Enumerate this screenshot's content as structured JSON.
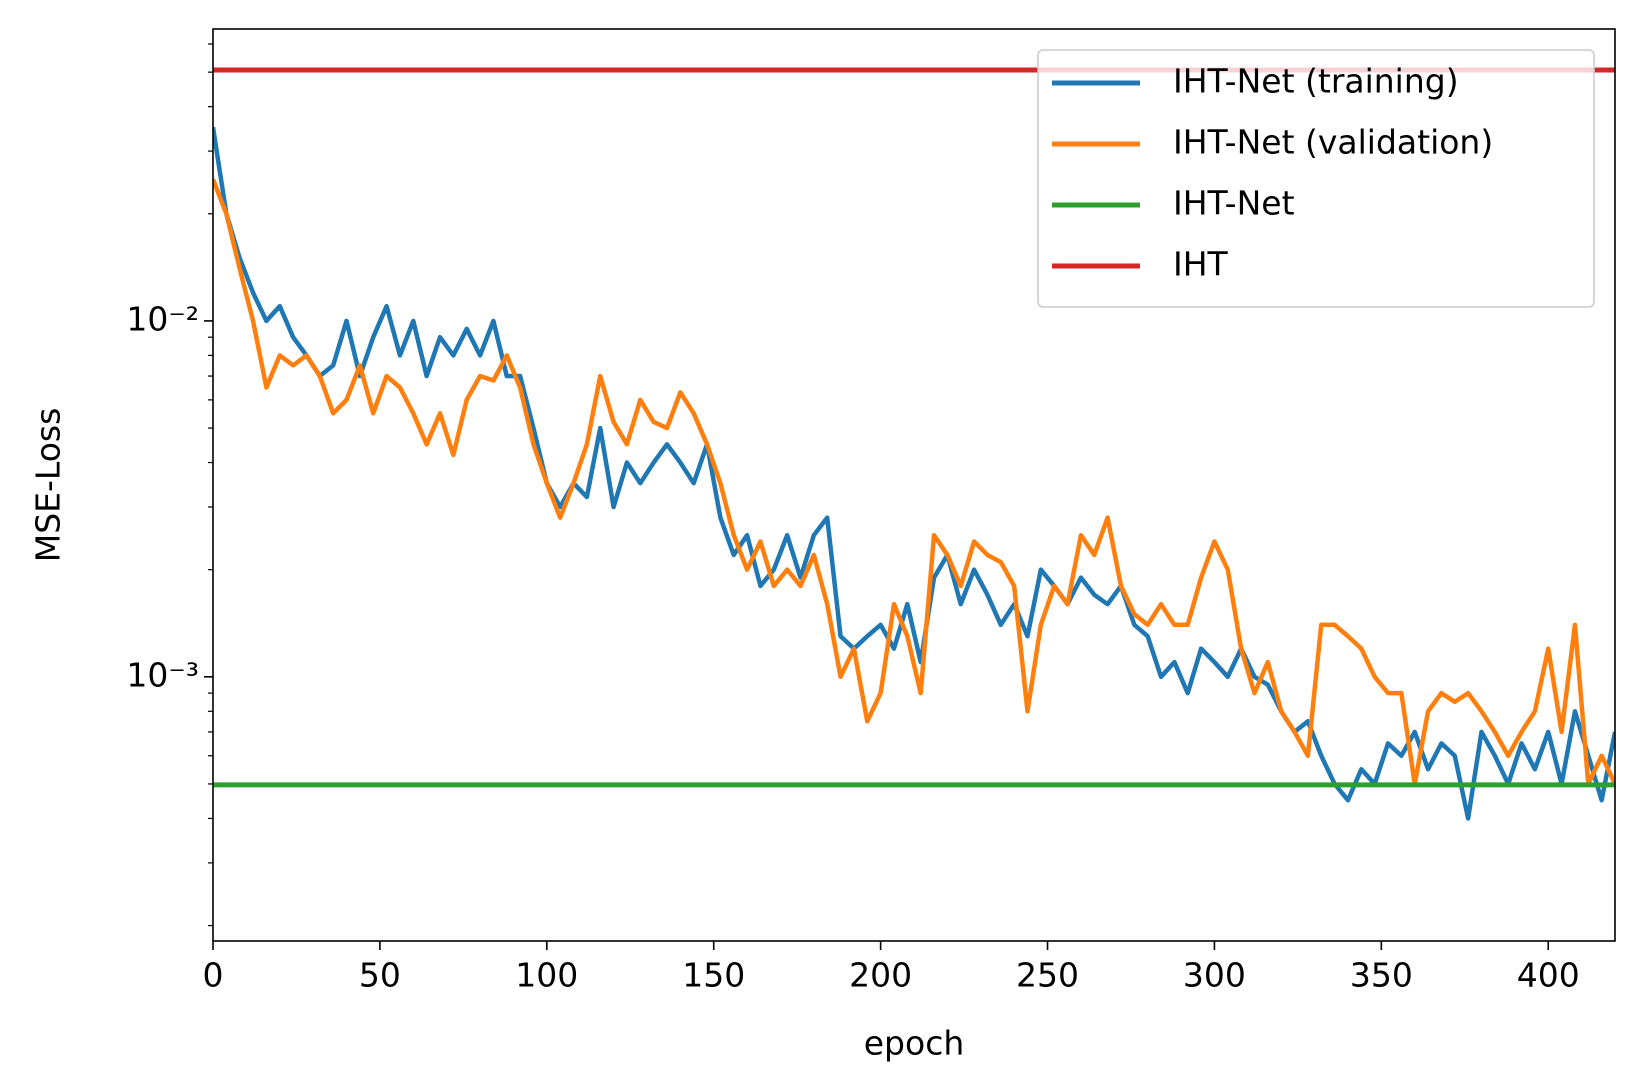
{
  "chart_data": {
    "type": "line",
    "xlabel": "epoch",
    "ylabel": "MSE-Loss",
    "yscale": "log",
    "legend": "upper right",
    "xlim": [
      0,
      420
    ],
    "xticks": [
      0,
      50,
      100,
      150,
      200,
      250,
      300,
      350,
      400
    ],
    "ylim": [
      0.000181,
      0.0661
    ],
    "yticks": [
      {
        "value": 0.001,
        "label": "10⁻³"
      },
      {
        "value": 0.01,
        "label": "10⁻²"
      }
    ],
    "yminor_ticks": [
      0.0002,
      0.0003,
      0.0004,
      0.0005,
      0.0006,
      0.0007,
      0.0008,
      0.0009,
      0.002,
      0.003,
      0.004,
      0.005,
      0.006,
      0.007,
      0.008,
      0.009,
      0.02,
      0.03,
      0.04,
      0.05,
      0.06
    ],
    "x": [
      0,
      4,
      8,
      12,
      16,
      20,
      24,
      28,
      32,
      36,
      40,
      44,
      48,
      52,
      56,
      60,
      64,
      68,
      72,
      76,
      80,
      84,
      88,
      92,
      96,
      100,
      104,
      108,
      112,
      116,
      120,
      124,
      128,
      132,
      136,
      140,
      144,
      148,
      152,
      156,
      160,
      164,
      168,
      172,
      176,
      180,
      184,
      188,
      192,
      196,
      200,
      204,
      208,
      212,
      216,
      220,
      224,
      228,
      232,
      236,
      240,
      244,
      248,
      252,
      256,
      260,
      264,
      268,
      272,
      276,
      280,
      284,
      288,
      292,
      296,
      300,
      304,
      308,
      312,
      316,
      320,
      324,
      328,
      332,
      336,
      340,
      344,
      348,
      352,
      356,
      360,
      364,
      368,
      372,
      376,
      380,
      384,
      388,
      392,
      396,
      400,
      404,
      408,
      412,
      416,
      420
    ],
    "series": [
      {
        "name": "IHT-Net (training)",
        "color": "#1f77b4",
        "values": [
          0.035,
          0.02,
          0.015,
          0.012,
          0.01,
          0.011,
          0.009,
          0.008,
          0.007,
          0.0075,
          0.01,
          0.007,
          0.009,
          0.011,
          0.008,
          0.01,
          0.007,
          0.009,
          0.008,
          0.0095,
          0.008,
          0.01,
          0.007,
          0.007,
          0.005,
          0.0035,
          0.003,
          0.0035,
          0.0032,
          0.005,
          0.003,
          0.004,
          0.0035,
          0.004,
          0.0045,
          0.004,
          0.0035,
          0.0045,
          0.0028,
          0.0022,
          0.0025,
          0.0018,
          0.002,
          0.0025,
          0.0019,
          0.0025,
          0.0028,
          0.0013,
          0.0012,
          0.0013,
          0.0014,
          0.0012,
          0.0016,
          0.0011,
          0.0019,
          0.0022,
          0.0016,
          0.002,
          0.0017,
          0.0014,
          0.0016,
          0.0013,
          0.002,
          0.0018,
          0.0016,
          0.0019,
          0.0017,
          0.0016,
          0.0018,
          0.0014,
          0.0013,
          0.001,
          0.0011,
          0.0009,
          0.0012,
          0.0011,
          0.001,
          0.0012,
          0.001,
          0.00095,
          0.0008,
          0.0007,
          0.00075,
          0.0006,
          0.0005,
          0.00045,
          0.00055,
          0.0005,
          0.00065,
          0.0006,
          0.0007,
          0.00055,
          0.00065,
          0.0006,
          0.0004,
          0.0007,
          0.0006,
          0.0005,
          0.00065,
          0.00055,
          0.0007,
          0.0005,
          0.0008,
          0.0006,
          0.00045,
          0.0007
        ]
      },
      {
        "name": "IHT-Net (validation)",
        "color": "#ff7f0e",
        "values": [
          0.025,
          0.02,
          0.014,
          0.01,
          0.0065,
          0.008,
          0.0075,
          0.008,
          0.007,
          0.0055,
          0.006,
          0.0075,
          0.0055,
          0.007,
          0.0065,
          0.0055,
          0.0045,
          0.0055,
          0.0042,
          0.006,
          0.007,
          0.0068,
          0.008,
          0.0065,
          0.0045,
          0.0035,
          0.0028,
          0.0035,
          0.0045,
          0.007,
          0.0052,
          0.0045,
          0.006,
          0.0052,
          0.005,
          0.0063,
          0.0055,
          0.0045,
          0.0035,
          0.0025,
          0.002,
          0.0024,
          0.0018,
          0.002,
          0.0018,
          0.0022,
          0.0016,
          0.001,
          0.0012,
          0.00075,
          0.0009,
          0.0016,
          0.0013,
          0.0009,
          0.0025,
          0.0022,
          0.0018,
          0.0024,
          0.0022,
          0.0021,
          0.0018,
          0.0008,
          0.0014,
          0.0018,
          0.0016,
          0.0025,
          0.0022,
          0.0028,
          0.0018,
          0.0015,
          0.0014,
          0.0016,
          0.0014,
          0.0014,
          0.0019,
          0.0024,
          0.002,
          0.0012,
          0.0009,
          0.0011,
          0.0008,
          0.0007,
          0.0006,
          0.0014,
          0.0014,
          0.0013,
          0.0012,
          0.001,
          0.0009,
          0.0009,
          0.0005,
          0.0008,
          0.0009,
          0.00085,
          0.0009,
          0.0008,
          0.0007,
          0.0006,
          0.0007,
          0.0008,
          0.0012,
          0.0007,
          0.0014,
          0.0005,
          0.0006,
          0.0005
        ]
      },
      {
        "name": "IHT-Net",
        "color": "#2ca02c",
        "constant": 0.000497
      },
      {
        "name": "IHT",
        "color": "#d62728",
        "constant": 0.0507
      }
    ]
  }
}
